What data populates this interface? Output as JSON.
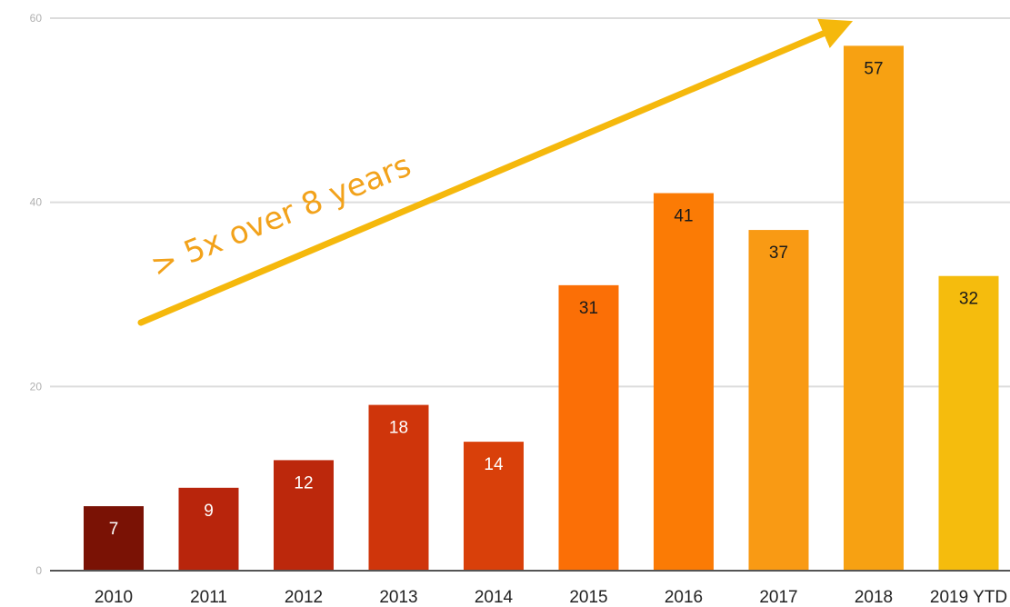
{
  "chart_data": {
    "type": "bar",
    "categories": [
      "2010",
      "2011",
      "2012",
      "2013",
      "2014",
      "2015",
      "2016",
      "2017",
      "2018",
      "2019 YTD"
    ],
    "values": [
      7,
      9,
      12,
      18,
      14,
      31,
      41,
      37,
      57,
      32
    ],
    "bar_colors": [
      "#7a1205",
      "#b8250c",
      "#bc280c",
      "#cf350b",
      "#d9400a",
      "#fb6f06",
      "#fb7b05",
      "#f99a14",
      "#f7a112",
      "#f5bc0d"
    ],
    "data_label_colors": [
      "#ffffff",
      "#ffffff",
      "#ffffff",
      "#ffffff",
      "#ffffff",
      "#1a1a1a",
      "#1a1a1a",
      "#1a1a1a",
      "#1a1a1a",
      "#1a1a1a"
    ],
    "title": "",
    "xlabel": "",
    "ylabel": "",
    "ylim": [
      0,
      60
    ],
    "yticks": [
      "0",
      "20",
      "40",
      "60"
    ],
    "grid": true,
    "annotation": {
      "text": "> 5x over 8 years",
      "color": "#f2a21b",
      "arrow_color": "#f5b80c"
    }
  }
}
